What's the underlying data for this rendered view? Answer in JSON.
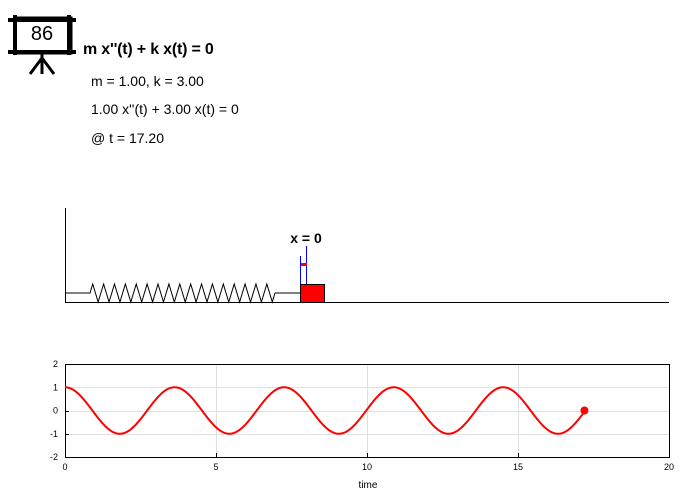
{
  "badge": {
    "number": "86",
    "icon": "presentation-board-icon"
  },
  "equation": {
    "title": "m x''(t) + k x(t) = 0",
    "params": "m = 1.00, k = 3.00",
    "instance": "1.00 x''(t) + 3.00 x(t) = 0",
    "time": "@ t = 17.20"
  },
  "spring_scene": {
    "marker_label": "x = 0",
    "mass_color": "#ff0000",
    "marker_color": "#0000ff",
    "displacement": 0.0,
    "spring_coils": 17
  },
  "chart_data": {
    "type": "line",
    "title": "",
    "xlabel": "time",
    "ylabel": "",
    "xlim": [
      0,
      20
    ],
    "ylim": [
      -2,
      2
    ],
    "xticks": [
      0,
      5,
      10,
      15,
      20
    ],
    "yticks": [
      2,
      1,
      0,
      -1,
      -2
    ],
    "grid": true,
    "series": [
      {
        "function": "cos(sqrt(3) t)",
        "t_start": 0,
        "t_end": 17.2,
        "color": "#ff0000"
      }
    ],
    "current_point": {
      "x": 17.2,
      "y": 0.0,
      "color": "#ff0000"
    }
  }
}
